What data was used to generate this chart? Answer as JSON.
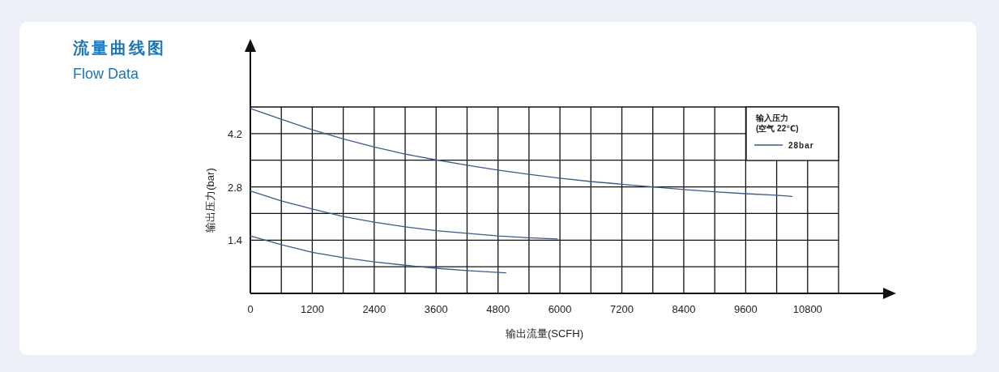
{
  "chart_data": {
    "type": "line",
    "title": "流量曲线图",
    "subtitle": "Flow Data",
    "xlabel": "输出流量(SCFH)",
    "ylabel": "输出压力(bar)",
    "legend_title": "输入压力\n(空气 22℃)",
    "xlim": [
      0,
      11400
    ],
    "ylim": [
      0,
      4.9
    ],
    "xticks": [
      0,
      {
        "value": 600,
        "label": null
      },
      1200,
      {
        "value": 1800,
        "label": null
      },
      2400,
      {
        "value": 3000,
        "label": null
      },
      3600,
      {
        "value": 4200,
        "label": null
      },
      4800,
      {
        "value": 5400,
        "label": null
      },
      6000,
      {
        "value": 6600,
        "label": null
      },
      7200,
      {
        "value": 7800,
        "label": null
      },
      8400,
      {
        "value": 9000,
        "label": null
      },
      9600,
      {
        "value": 10200,
        "label": null
      },
      10800,
      {
        "value": 11400,
        "label": null
      }
    ],
    "yticks": [
      {
        "value": 0.7,
        "label": null
      },
      1.4,
      {
        "value": 2.1,
        "label": null
      },
      2.8,
      {
        "value": 3.5,
        "label": null
      },
      4.2,
      {
        "value": 4.9,
        "label": null
      }
    ],
    "grid": true,
    "legend": "top right",
    "marker": "none",
    "line_style": "solid",
    "series": [
      {
        "name": "28bar",
        "color": "#3b5a94",
        "x": [
          0,
          600,
          1200,
          1800,
          2400,
          3000,
          3600,
          4200,
          4800,
          5400,
          6000,
          6600,
          7200,
          7800,
          8400,
          9000,
          9600,
          10200,
          10500
        ],
        "values": [
          4.86,
          4.58,
          4.3,
          4.06,
          3.85,
          3.66,
          3.51,
          3.37,
          3.24,
          3.13,
          3.03,
          2.94,
          2.87,
          2.8,
          2.73,
          2.67,
          2.62,
          2.58,
          2.55
        ]
      },
      {
        "color": "#3b5a94",
        "x": [
          0,
          600,
          1200,
          1800,
          2400,
          3000,
          3600,
          4200,
          4800,
          5400,
          5950
        ],
        "values": [
          2.69,
          2.43,
          2.22,
          2.02,
          1.87,
          1.75,
          1.65,
          1.58,
          1.51,
          1.46,
          1.43
        ]
      },
      {
        "color": "#3b5a94",
        "x": [
          0,
          600,
          1200,
          1800,
          2400,
          3000,
          3600,
          4200,
          4800,
          4950
        ],
        "values": [
          1.51,
          1.28,
          1.08,
          0.94,
          0.83,
          0.74,
          0.66,
          0.6,
          0.55,
          0.54
        ]
      }
    ]
  }
}
